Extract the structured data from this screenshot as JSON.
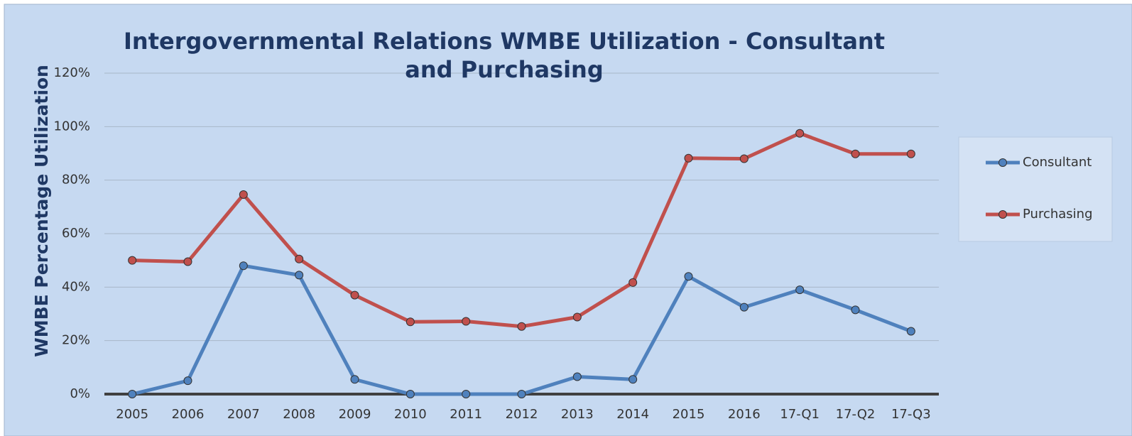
{
  "chart_data": {
    "type": "line",
    "title": "Intergovernmental Relations WMBE Utilization - Consultant and Purchasing",
    "y_label": "WMBE Percentage Utilization",
    "categories": [
      "2005",
      "2006",
      "2007",
      "2008",
      "2009",
      "2010",
      "2011",
      "2012",
      "2013",
      "2014",
      "2015",
      "2016",
      "17-Q1",
      "17-Q2",
      "17-Q3"
    ],
    "series": [
      {
        "name": "Consultant",
        "color": "#4f81bd",
        "values": [
          0,
          5,
          48,
          44.5,
          5.5,
          0,
          0,
          0,
          6.5,
          5.5,
          44,
          32.5,
          39,
          31.5,
          23.5
        ]
      },
      {
        "name": "Purchasing",
        "color": "#c0504d",
        "values": [
          50,
          49.5,
          74.6,
          50.5,
          37,
          27,
          27.2,
          25.3,
          28.8,
          41.7,
          88.2,
          88,
          97.5,
          89.8,
          89.8
        ]
      }
    ],
    "ylim": [
      0,
      120
    ],
    "yticks": [
      {
        "value": 0,
        "label": "0%"
      },
      {
        "value": 20,
        "label": "20%"
      },
      {
        "value": 40,
        "label": "40%"
      },
      {
        "value": 60,
        "label": "60%"
      },
      {
        "value": 80,
        "label": "80%"
      },
      {
        "value": 100,
        "label": "100%"
      },
      {
        "value": 120,
        "label": "120%"
      }
    ],
    "grid": true,
    "legend": "right"
  }
}
